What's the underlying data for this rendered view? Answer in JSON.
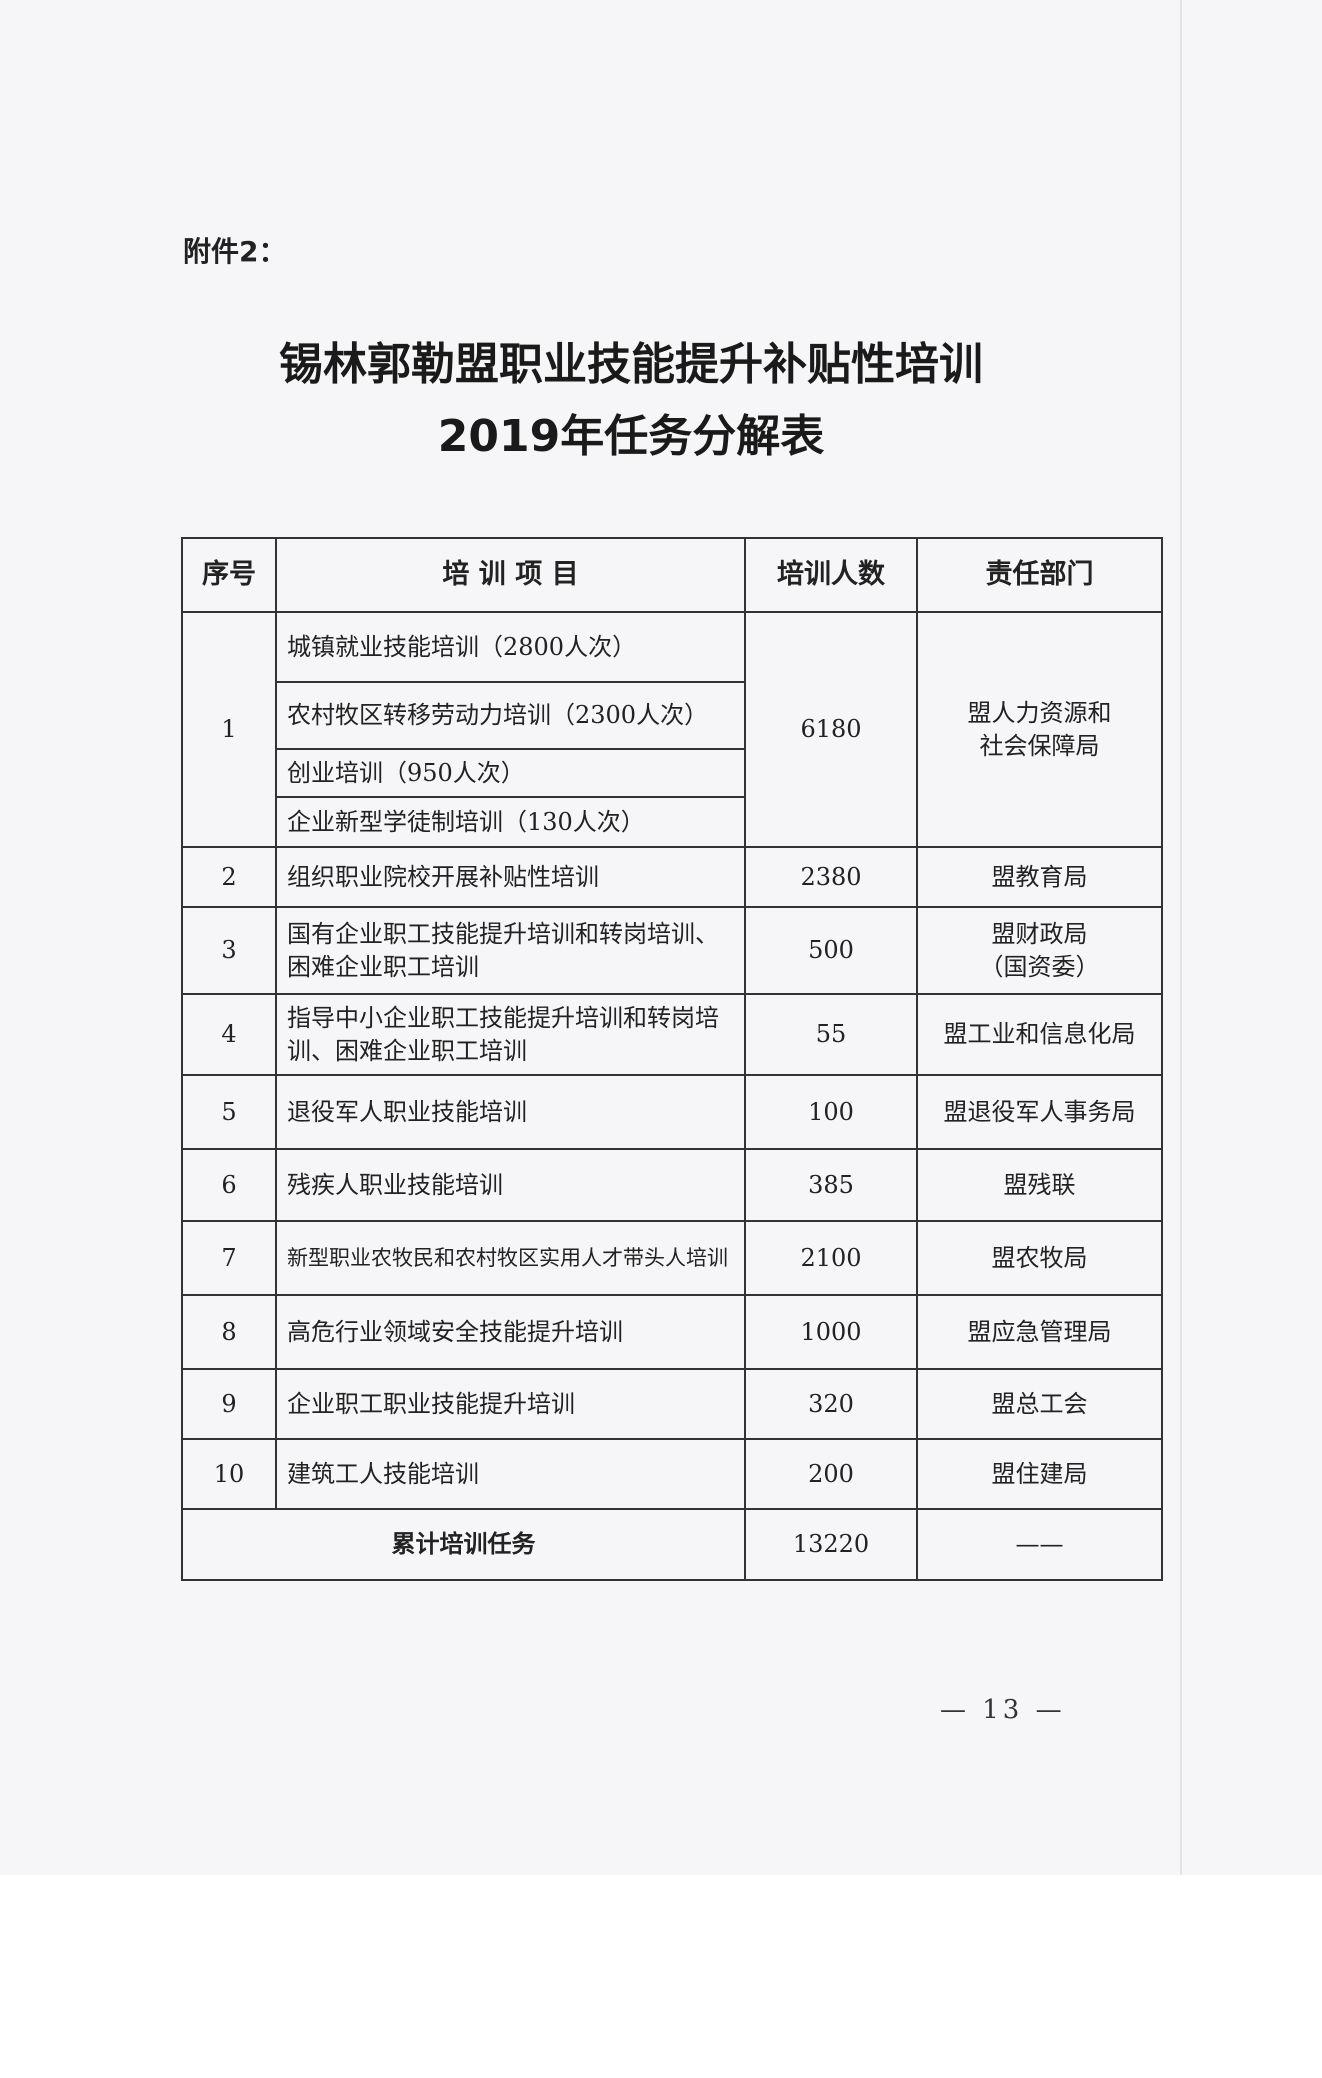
{
  "attachment_label": "附件2：",
  "title_line1": "锡林郭勒盟职业技能提升补贴性培训",
  "title_line2": "2019年任务分解表",
  "table": {
    "headers": [
      "序号",
      "培 训 项 目",
      "培训人数",
      "责任部门"
    ],
    "group1": {
      "no": "1",
      "items": [
        "城镇就业技能培训（2800人次）",
        "农村牧区转移劳动力培训（2300人次）",
        "创业培训（950人次）",
        "企业新型学徒制培训（130人次）"
      ],
      "count": "6180",
      "dept": "盟人力资源和社会保障局"
    },
    "rows": [
      {
        "no": "2",
        "item": "组织职业院校开展补贴性培训",
        "count": "2380",
        "dept": "盟教育局"
      },
      {
        "no": "3",
        "item": "国有企业职工技能提升培训和转岗培训、困难企业职工培训",
        "count": "500",
        "dept": "盟财政局（国资委）"
      },
      {
        "no": "4",
        "item": "指导中小企业职工技能提升培训和转岗培训、困难企业职工培训",
        "count": "55",
        "dept": "盟工业和信息化局"
      },
      {
        "no": "5",
        "item": "退役军人职业技能培训",
        "count": "100",
        "dept": "盟退役军人事务局"
      },
      {
        "no": "6",
        "item": "残疾人职业技能培训",
        "count": "385",
        "dept": "盟残联"
      },
      {
        "no": "7",
        "item": "新型职业农牧民和农村牧区实用人才带头人培训",
        "count": "2100",
        "dept": "盟农牧局"
      },
      {
        "no": "8",
        "item": "高危行业领域安全技能提升培训",
        "count": "1000",
        "dept": "盟应急管理局"
      },
      {
        "no": "9",
        "item": "企业职工职业技能提升培训",
        "count": "320",
        "dept": "盟总工会"
      },
      {
        "no": "10",
        "item": "建筑工人技能培训",
        "count": "200",
        "dept": "盟住建局"
      }
    ],
    "total": {
      "label": "累计培训任务",
      "count": "13220",
      "dept": "——"
    }
  },
  "page_number": "— 13 —"
}
